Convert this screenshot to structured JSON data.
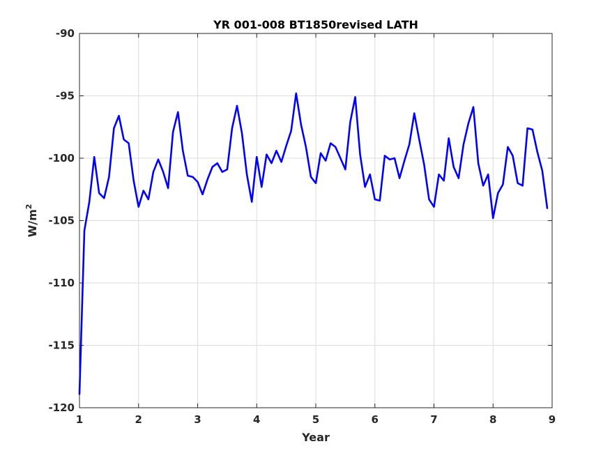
{
  "chart_data": {
    "type": "line",
    "title": "YR 001-008 BT1850revised LATH",
    "xlabel": "Year",
    "ylabel": "W/m",
    "ylabel_superscript": "2",
    "xlim": [
      1,
      9
    ],
    "ylim": [
      -120,
      -90
    ],
    "xticks": [
      1,
      2,
      3,
      4,
      5,
      6,
      7,
      8,
      9
    ],
    "yticks": [
      -120,
      -115,
      -110,
      -105,
      -100,
      -95,
      -90
    ],
    "grid": true,
    "series": [
      {
        "color": "#0000ff",
        "x": [
          1.0,
          1.083,
          1.167,
          1.25,
          1.333,
          1.417,
          1.5,
          1.583,
          1.667,
          1.75,
          1.833,
          1.917,
          2.0,
          2.083,
          2.167,
          2.25,
          2.333,
          2.417,
          2.5,
          2.583,
          2.667,
          2.75,
          2.833,
          2.917,
          3.0,
          3.083,
          3.167,
          3.25,
          3.333,
          3.417,
          3.5,
          3.583,
          3.667,
          3.75,
          3.833,
          3.917,
          4.0,
          4.083,
          4.167,
          4.25,
          4.333,
          4.417,
          4.5,
          4.583,
          4.667,
          4.75,
          4.833,
          4.917,
          5.0,
          5.083,
          5.167,
          5.25,
          5.333,
          5.417,
          5.5,
          5.583,
          5.667,
          5.75,
          5.833,
          5.917,
          6.0,
          6.083,
          6.167,
          6.25,
          6.333,
          6.417,
          6.5,
          6.583,
          6.667,
          6.75,
          6.833,
          6.917,
          7.0,
          7.083,
          7.167,
          7.25,
          7.333,
          7.417,
          7.5,
          7.583,
          7.667,
          7.75,
          7.833,
          7.917,
          8.0,
          8.083,
          8.167,
          8.25,
          8.333,
          8.417,
          8.5,
          8.583,
          8.667,
          8.75,
          8.833,
          8.917
        ],
        "values": [
          -118.9,
          -105.8,
          -103.5,
          -99.9,
          -102.8,
          -103.2,
          -101.5,
          -97.6,
          -96.6,
          -98.5,
          -98.8,
          -101.8,
          -103.9,
          -102.6,
          -103.3,
          -101.1,
          -100.1,
          -101.1,
          -102.4,
          -97.9,
          -96.3,
          -99.4,
          -101.4,
          -101.5,
          -101.9,
          -102.9,
          -101.7,
          -100.7,
          -100.4,
          -101.1,
          -100.9,
          -97.6,
          -95.8,
          -98.0,
          -101.3,
          -103.5,
          -99.9,
          -102.3,
          -99.7,
          -100.4,
          -99.4,
          -100.3,
          -99.0,
          -97.8,
          -94.8,
          -97.3,
          -99.1,
          -101.5,
          -102.0,
          -99.6,
          -100.2,
          -98.8,
          -99.1,
          -100.0,
          -100.9,
          -97.1,
          -95.1,
          -99.7,
          -102.3,
          -101.3,
          -103.3,
          -103.4,
          -99.8,
          -100.1,
          -100.0,
          -101.6,
          -100.2,
          -98.9,
          -96.4,
          -98.5,
          -100.5,
          -103.3,
          -103.9,
          -101.3,
          -101.8,
          -98.4,
          -100.7,
          -101.6,
          -98.9,
          -97.2,
          -95.9,
          -100.4,
          -102.2,
          -101.3,
          -104.8,
          -102.8,
          -102.1,
          -99.1,
          -99.8,
          -102.0,
          -102.2,
          -97.6,
          -97.7,
          -99.5,
          -101.0,
          -104.0
        ]
      }
    ]
  }
}
